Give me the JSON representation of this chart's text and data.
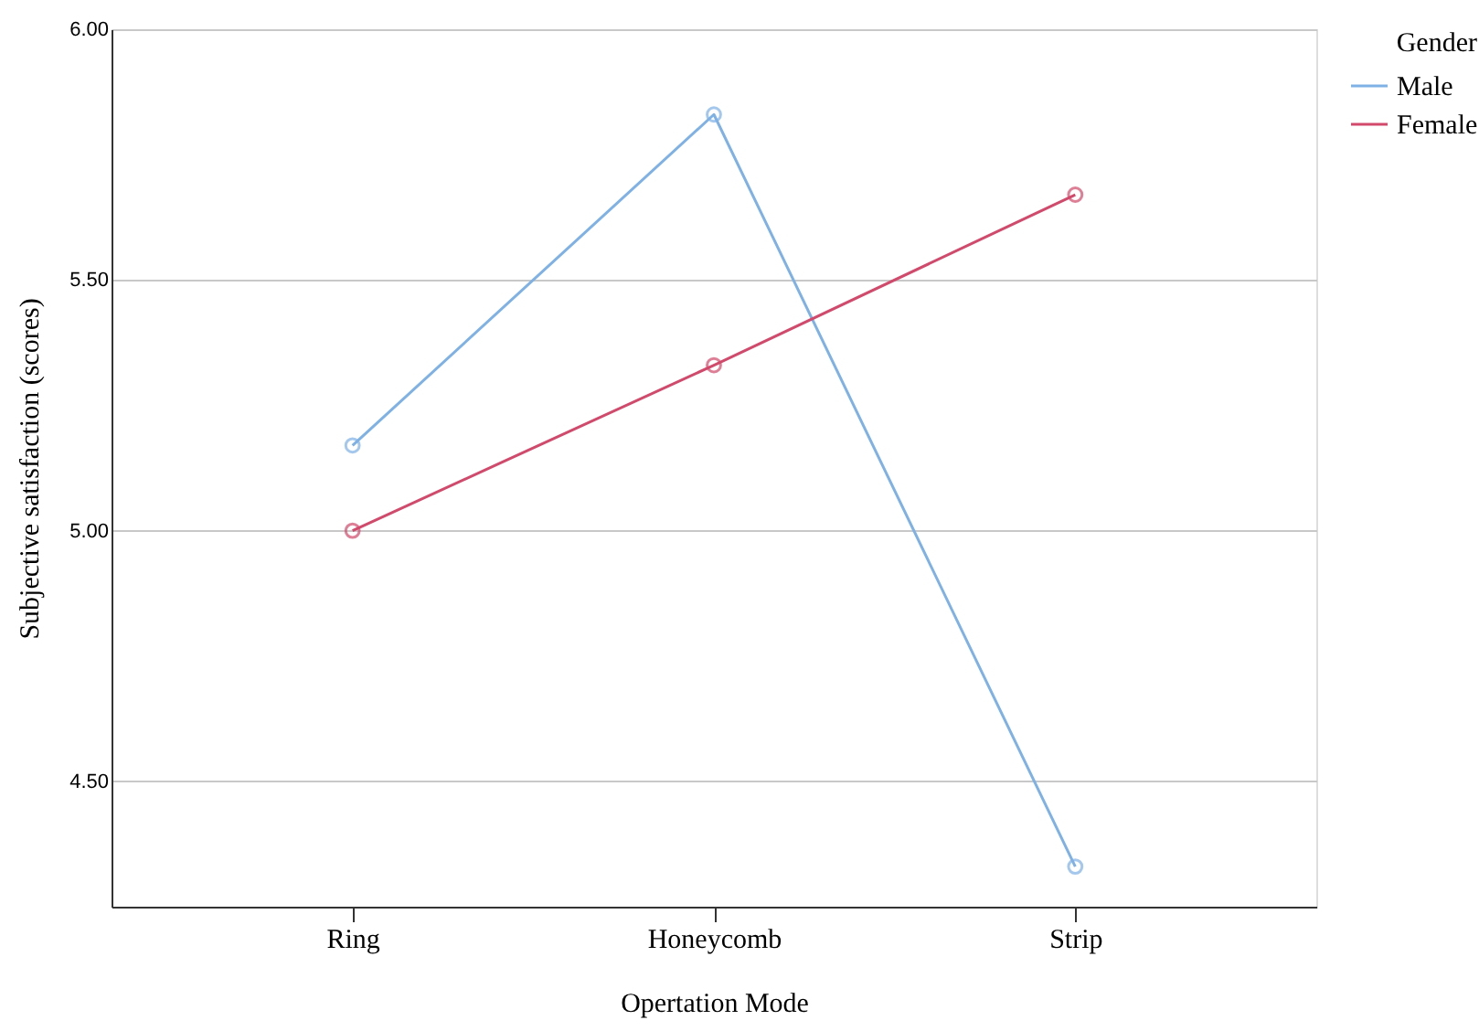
{
  "chart_data": {
    "type": "line",
    "xlabel": "Opertation Mode",
    "ylabel": "Subjective satisfaction (scores)",
    "legend_title": "Gender",
    "categories": [
      "Ring",
      "Honeycomb",
      "Strip"
    ],
    "series": [
      {
        "name": "Male",
        "color": "#7eb1e6",
        "values": [
          5.17,
          5.83,
          4.33
        ]
      },
      {
        "name": "Female",
        "color": "#d2496b",
        "values": [
          5.0,
          5.33,
          5.67
        ]
      }
    ],
    "ylim": [
      4.25,
      6.0
    ],
    "yticks": [
      {
        "value": 4.5,
        "label": "4.50"
      },
      {
        "value": 5.0,
        "label": "5.00"
      },
      {
        "value": 5.5,
        "label": "5.50"
      },
      {
        "value": 6.0,
        "label": "6.00"
      }
    ],
    "grid": "y",
    "legend": "top right",
    "marker": "circle",
    "line_style": "solid"
  }
}
